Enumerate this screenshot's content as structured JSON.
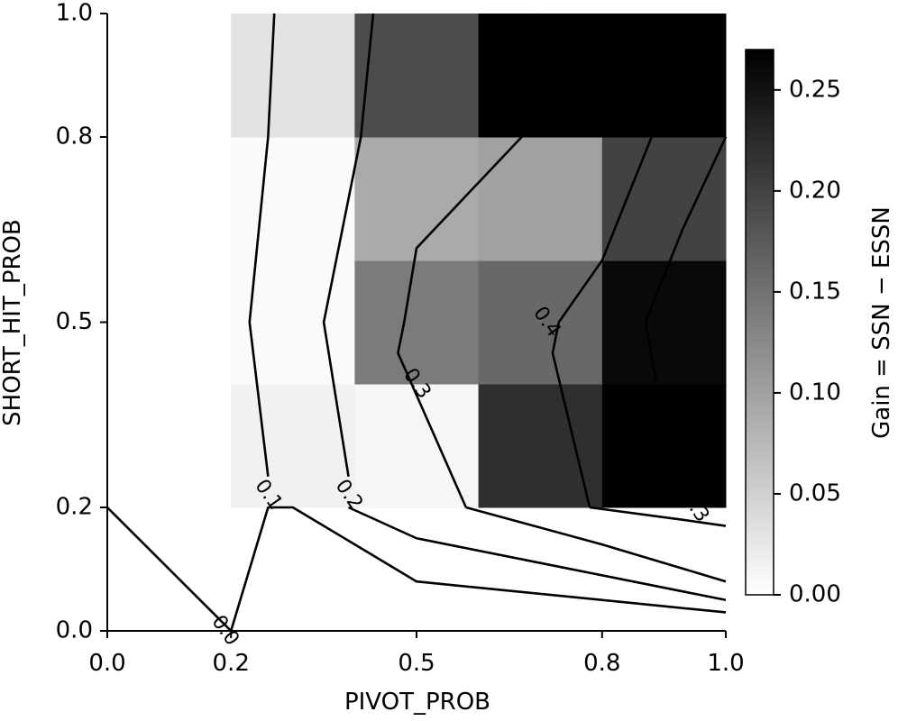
{
  "chart_data": {
    "type": "heatmap",
    "xlabel": "PIVOT_PROB",
    "ylabel": "SHORT_HIT_PROB",
    "colorbar_label": "Gain = SSN − ESSN",
    "xlim": [
      0.0,
      1.0
    ],
    "ylim": [
      0.0,
      1.0
    ],
    "x_ticks": [
      0.0,
      0.2,
      0.5,
      0.8,
      1.0
    ],
    "x_tick_labels": [
      "0.0",
      "0.2",
      "0.5",
      "0.8",
      "1.0"
    ],
    "y_ticks": [
      0.0,
      0.2,
      0.5,
      0.8,
      1.0
    ],
    "y_tick_labels": [
      "0.0",
      "0.2",
      "0.5",
      "0.8",
      "1.0"
    ],
    "colorbar_range": [
      0.0,
      0.27
    ],
    "colorbar_ticks": [
      0.0,
      0.05,
      0.1,
      0.15,
      0.2,
      0.25
    ],
    "colorbar_tick_labels": [
      "0.00",
      "0.05",
      "0.10",
      "0.15",
      "0.20",
      "0.25"
    ],
    "grid": {
      "x_edges": [
        0.2,
        0.4,
        0.6,
        0.8,
        1.0
      ],
      "y_edges": [
        0.2,
        0.4,
        0.6,
        0.8,
        1.0
      ],
      "rows_bottom_to_top": [
        [
          0.015,
          0.01,
          0.22,
          0.27
        ],
        [
          0.005,
          0.14,
          0.16,
          0.26
        ],
        [
          0.005,
          0.09,
          0.1,
          0.2
        ],
        [
          0.03,
          0.19,
          0.27,
          0.27
        ]
      ]
    },
    "contours": [
      {
        "label": "0.0",
        "points": [
          [
            0.0,
            0.2
          ],
          [
            0.18,
            0.02
          ],
          [
            0.2,
            0.0
          ]
        ],
        "label_at": [
          0.19,
          0.0
        ]
      },
      {
        "label": "0.1",
        "points": [
          [
            0.2,
            0.0
          ],
          [
            0.26,
            0.2
          ],
          [
            0.3,
            0.2
          ],
          [
            0.5,
            0.08
          ],
          [
            1.0,
            0.03
          ]
        ],
        "label_at": [
          0.26,
          0.22
        ]
      },
      {
        "label": "0.1",
        "points": [
          [
            0.26,
            0.25
          ],
          [
            0.23,
            0.5
          ],
          [
            0.26,
            0.8
          ],
          [
            0.27,
            1.0
          ]
        ],
        "label_at": null
      },
      {
        "label": "0.2",
        "points": [
          [
            0.39,
            0.2
          ],
          [
            0.5,
            0.15
          ],
          [
            1.0,
            0.05
          ]
        ],
        "label_at": [
          0.39,
          0.22
        ]
      },
      {
        "label": "0.2",
        "points": [
          [
            0.39,
            0.25
          ],
          [
            0.35,
            0.5
          ],
          [
            0.41,
            0.8
          ],
          [
            0.43,
            1.0
          ]
        ],
        "label_at": null
      },
      {
        "label": "0.3",
        "points": [
          [
            0.58,
            0.2
          ],
          [
            0.8,
            0.14
          ],
          [
            1.0,
            0.08
          ]
        ],
        "label_at": null
      },
      {
        "label": "0.3",
        "points": [
          [
            0.58,
            0.2
          ],
          [
            0.47,
            0.45
          ],
          [
            0.48,
            0.5
          ],
          [
            0.5,
            0.62
          ],
          [
            0.67,
            0.8
          ],
          [
            0.7,
            1.0
          ]
        ],
        "label_at": [
          0.5,
          0.4
        ]
      },
      {
        "label": "0.3",
        "points": [
          [
            0.78,
            0.2
          ],
          [
            0.93,
            0.18
          ],
          [
            1.0,
            0.17
          ]
        ],
        "label_at": [
          0.95,
          0.2
        ]
      },
      {
        "label": "0.4",
        "points": [
          [
            0.78,
            0.2
          ],
          [
            0.72,
            0.45
          ],
          [
            0.73,
            0.5
          ],
          [
            0.8,
            0.6
          ],
          [
            0.88,
            0.8
          ],
          [
            0.9,
            1.0
          ]
        ],
        "label_at": [
          0.71,
          0.5
        ]
      },
      {
        "label": "",
        "points": [
          [
            0.89,
            0.39
          ],
          [
            0.87,
            0.5
          ],
          [
            0.93,
            0.65
          ],
          [
            1.0,
            0.8
          ]
        ],
        "label_at": null
      }
    ]
  }
}
